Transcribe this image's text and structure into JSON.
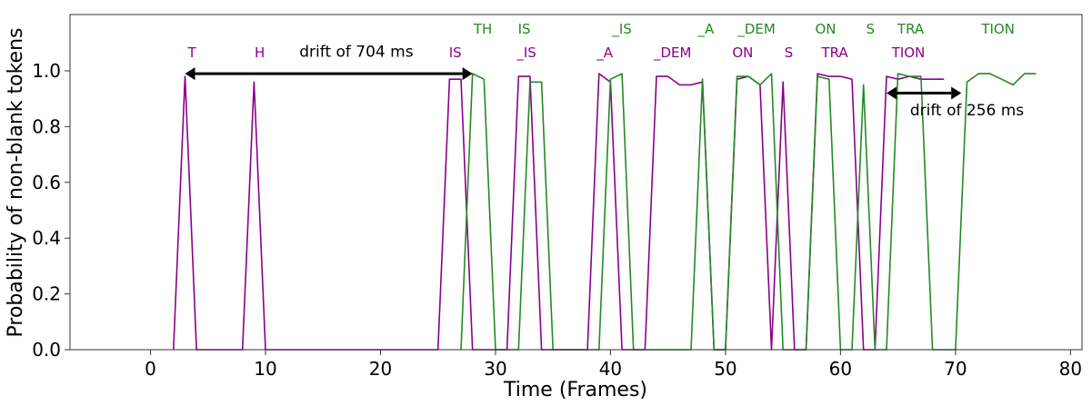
{
  "chart_data": {
    "type": "line",
    "xlabel": "Time (Frames)",
    "ylabel": "Probability of non-blank tokens",
    "xlim": [
      -7,
      81
    ],
    "ylim": [
      0,
      1.2
    ],
    "xticks": [
      0,
      10,
      20,
      30,
      40,
      50,
      60,
      70,
      80
    ],
    "yticks": [
      0.0,
      0.2,
      0.4,
      0.6,
      0.8,
      1.0
    ],
    "ytick_labels": [
      "0.0",
      "0.2",
      "0.4",
      "0.6",
      "0.8",
      "1.0"
    ],
    "grid": false,
    "series": [
      {
        "color": "#8b008b",
        "points": [
          [
            2,
            0
          ],
          [
            3,
            0.98
          ],
          [
            4,
            0
          ],
          [
            8,
            0
          ],
          [
            9,
            0.96
          ],
          [
            10,
            0
          ],
          [
            25,
            0
          ],
          [
            26,
            0.97
          ],
          [
            27,
            0.97
          ],
          [
            28,
            0
          ],
          [
            31,
            0
          ],
          [
            32,
            0.98
          ],
          [
            33,
            0.98
          ],
          [
            34,
            0
          ],
          [
            38,
            0
          ],
          [
            39,
            0.99
          ],
          [
            40,
            0.96
          ],
          [
            41,
            0
          ],
          [
            43,
            0
          ],
          [
            44,
            0.98
          ],
          [
            45,
            0.98
          ],
          [
            46,
            0.95
          ],
          [
            47,
            0.95
          ],
          [
            48,
            0.96
          ],
          [
            49,
            0
          ],
          [
            50,
            0
          ],
          [
            51,
            0.97
          ],
          [
            52,
            0.98
          ],
          [
            53,
            0.95
          ],
          [
            54,
            0
          ],
          [
            55,
            0.96
          ],
          [
            56,
            0
          ],
          [
            57,
            0
          ],
          [
            58,
            0.99
          ],
          [
            59,
            0.98
          ],
          [
            60,
            0.98
          ],
          [
            61,
            0.97
          ],
          [
            62,
            0
          ],
          [
            63,
            0
          ],
          [
            64,
            0.98
          ],
          [
            65,
            0.97
          ],
          [
            66,
            0.98
          ],
          [
            67,
            0.97
          ],
          [
            68,
            0.97
          ],
          [
            69,
            0.97
          ]
        ]
      },
      {
        "color": "#228b22",
        "points": [
          [
            27,
            0
          ],
          [
            28,
            0.99
          ],
          [
            29,
            0.97
          ],
          [
            30,
            0
          ],
          [
            32,
            0
          ],
          [
            33,
            0.96
          ],
          [
            34,
            0.96
          ],
          [
            35,
            0
          ],
          [
            39,
            0
          ],
          [
            40,
            0.97
          ],
          [
            41,
            0.99
          ],
          [
            42,
            0
          ],
          [
            47,
            0
          ],
          [
            48,
            0.97
          ],
          [
            49,
            0
          ],
          [
            50,
            0
          ],
          [
            51,
            0.98
          ],
          [
            52,
            0.98
          ],
          [
            53,
            0.95
          ],
          [
            54,
            0.99
          ],
          [
            55,
            0
          ],
          [
            57,
            0
          ],
          [
            58,
            0.98
          ],
          [
            59,
            0.97
          ],
          [
            60,
            0
          ],
          [
            61,
            0
          ],
          [
            62,
            0.95
          ],
          [
            63,
            0
          ],
          [
            64,
            0
          ],
          [
            65,
            0.99
          ],
          [
            66,
            0.98
          ],
          [
            67,
            0.98
          ],
          [
            68,
            0
          ],
          [
            70,
            0
          ],
          [
            71,
            0.96
          ],
          [
            72,
            0.99
          ],
          [
            73,
            0.99
          ],
          [
            74,
            0.97
          ],
          [
            75,
            0.95
          ],
          [
            76,
            0.99
          ],
          [
            77,
            0.99
          ]
        ]
      }
    ],
    "token_labels": [
      {
        "text": "T",
        "x": 3.6,
        "row": "lower",
        "color": "#8b008b"
      },
      {
        "text": "H",
        "x": 9.5,
        "row": "lower",
        "color": "#8b008b"
      },
      {
        "text": "IS",
        "x": 26.5,
        "row": "lower",
        "color": "#8b008b"
      },
      {
        "text": "_IS",
        "x": 32.7,
        "row": "lower",
        "color": "#8b008b"
      },
      {
        "text": "_A",
        "x": 39.5,
        "row": "lower",
        "color": "#8b008b"
      },
      {
        "text": "_DEM",
        "x": 45.4,
        "row": "lower",
        "color": "#8b008b"
      },
      {
        "text": "ON",
        "x": 51.5,
        "row": "lower",
        "color": "#8b008b"
      },
      {
        "text": "S",
        "x": 55.5,
        "row": "lower",
        "color": "#8b008b"
      },
      {
        "text": "TRA",
        "x": 59.5,
        "row": "lower",
        "color": "#8b008b"
      },
      {
        "text": "TION",
        "x": 65.9,
        "row": "lower",
        "color": "#8b008b"
      },
      {
        "text": "TH",
        "x": 28.9,
        "row": "upper",
        "color": "#228b22"
      },
      {
        "text": "IS",
        "x": 32.5,
        "row": "upper",
        "color": "#228b22"
      },
      {
        "text": "_IS",
        "x": 41.0,
        "row": "upper",
        "color": "#228b22"
      },
      {
        "text": "_A",
        "x": 48.3,
        "row": "upper",
        "color": "#228b22"
      },
      {
        "text": "_DEM",
        "x": 52.7,
        "row": "upper",
        "color": "#228b22"
      },
      {
        "text": "ON",
        "x": 58.7,
        "row": "upper",
        "color": "#228b22"
      },
      {
        "text": "S",
        "x": 62.6,
        "row": "upper",
        "color": "#228b22"
      },
      {
        "text": "TRA",
        "x": 66.1,
        "row": "upper",
        "color": "#228b22"
      },
      {
        "text": "TION",
        "x": 73.7,
        "row": "upper",
        "color": "#228b22"
      }
    ],
    "annotations": [
      {
        "text": "drift of 704 ms",
        "x1": 3,
        "x2": 28,
        "y": 0.99,
        "text_x": 17.9,
        "text_y": 1.05
      },
      {
        "text": "drift of 256 ms",
        "x1": 64,
        "x2": 70.5,
        "y": 0.92,
        "text_x": 71.0,
        "text_y": 0.84
      }
    ]
  }
}
